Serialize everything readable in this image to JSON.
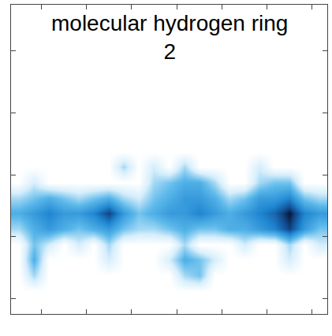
{
  "chart_data": {
    "type": "heatmap",
    "title": "molecular hydrogen ring 2",
    "x": [
      0.5,
      1.5,
      2.5,
      3.5,
      4.5,
      5.5,
      6.5,
      7.5,
      8.5,
      9.5,
      10.5,
      11.5,
      12.5,
      13.5,
      14.5,
      15.5,
      16.5,
      17.5,
      18.5,
      19.5,
      20.5
    ],
    "y": [
      0.5,
      1.5,
      2.5,
      3.5,
      4.5,
      5.5,
      6.5,
      7.5,
      8.5,
      9.5,
      10.5,
      11.5,
      12.5,
      13.5,
      14.5,
      15.5,
      16.5,
      17.5,
      18.5,
      19.5
    ],
    "cells": [
      [
        0,
        0,
        0,
        0,
        0,
        0,
        0,
        0,
        0,
        0,
        0,
        0,
        0,
        0,
        0,
        0,
        0,
        0,
        0,
        0,
        0
      ],
      [
        0,
        0,
        0,
        0,
        0,
        0,
        0,
        0,
        0,
        0,
        0,
        0,
        0,
        0,
        0,
        0,
        0,
        0,
        0,
        0,
        0
      ],
      [
        0,
        0.3,
        0,
        0,
        0,
        0,
        0,
        0,
        0,
        0,
        0,
        0.3,
        0.4,
        0,
        0,
        0,
        0,
        0,
        0,
        0,
        0
      ],
      [
        0,
        0.5,
        0,
        0,
        0,
        0,
        0.2,
        0,
        0,
        0,
        0.2,
        0.5,
        0.4,
        0.2,
        0,
        0,
        0,
        0,
        0.2,
        0,
        0
      ],
      [
        0,
        0.4,
        0.2,
        0,
        0.2,
        0,
        0.3,
        0,
        0,
        0,
        0,
        0.3,
        0,
        0,
        0,
        0.2,
        0,
        0,
        0.3,
        0,
        0.2
      ],
      [
        0.3,
        0.5,
        0.6,
        0.5,
        0.4,
        0.5,
        0.6,
        0.4,
        0.3,
        0.3,
        0.4,
        0.5,
        0.4,
        0.4,
        0.5,
        0.5,
        0.6,
        0.7,
        0.9,
        0.6,
        0.4
      ],
      [
        0.5,
        0.6,
        0.7,
        0.6,
        0.6,
        0.7,
        0.9,
        0.6,
        0.4,
        0.5,
        0.6,
        0.6,
        0.7,
        0.6,
        0.5,
        0.6,
        0.7,
        0.8,
        1.0,
        0.7,
        0.6
      ],
      [
        0.3,
        0.4,
        0.5,
        0.4,
        0.3,
        0.4,
        0.5,
        0.3,
        0.2,
        0.4,
        0.5,
        0.6,
        0.6,
        0.5,
        0.3,
        0.4,
        0.6,
        0.6,
        0.7,
        0.4,
        0.3
      ],
      [
        0,
        0.2,
        0,
        0,
        0,
        0,
        0,
        0,
        0,
        0.3,
        0.4,
        0.5,
        0.5,
        0.3,
        0,
        0,
        0.3,
        0.4,
        0.4,
        0,
        0
      ],
      [
        0,
        0,
        0,
        0,
        0,
        0,
        0,
        0.3,
        0,
        0.2,
        0,
        0.3,
        0,
        0,
        0,
        0,
        0.2,
        0,
        0,
        0,
        0
      ],
      [
        0,
        0,
        0,
        0,
        0,
        0,
        0,
        0,
        0,
        0,
        0,
        0,
        0,
        0,
        0,
        0,
        0,
        0,
        0,
        0,
        0
      ],
      [
        0,
        0,
        0,
        0,
        0,
        0,
        0,
        0,
        0,
        0,
        0,
        0,
        0,
        0,
        0,
        0,
        0,
        0,
        0,
        0,
        0
      ],
      [
        0,
        0,
        0,
        0,
        0,
        0,
        0,
        0,
        0,
        0,
        0,
        0,
        0,
        0,
        0,
        0,
        0,
        0,
        0,
        0,
        0
      ],
      [
        0,
        0,
        0,
        0,
        0,
        0,
        0,
        0,
        0,
        0,
        0,
        0,
        0,
        0,
        0,
        0,
        0,
        0,
        0,
        0,
        0
      ],
      [
        0,
        0,
        0,
        0,
        0,
        0,
        0,
        0,
        0,
        0,
        0,
        0,
        0,
        0,
        0,
        0,
        0,
        0,
        0,
        0,
        0
      ],
      [
        0,
        0,
        0,
        0,
        0,
        0,
        0,
        0,
        0,
        0,
        0,
        0,
        0,
        0,
        0,
        0,
        0,
        0,
        0,
        0,
        0
      ],
      [
        0,
        0,
        0,
        0,
        0,
        0,
        0,
        0,
        0,
        0,
        0,
        0,
        0,
        0,
        0,
        0,
        0,
        0,
        0,
        0,
        0
      ],
      [
        0,
        0,
        0,
        0,
        0,
        0,
        0,
        0,
        0,
        0,
        0,
        0,
        0,
        0,
        0,
        0,
        0,
        0,
        0,
        0,
        0
      ],
      [
        0,
        0,
        0,
        0,
        0,
        0,
        0,
        0,
        0,
        0,
        0,
        0,
        0,
        0,
        0,
        0,
        0,
        0,
        0,
        0,
        0
      ],
      [
        0,
        0,
        0,
        0,
        0,
        0,
        0,
        0,
        0,
        0,
        0,
        0,
        0,
        0,
        0,
        0,
        0,
        0,
        0,
        0,
        0
      ]
    ],
    "color_range": [
      0,
      1
    ],
    "xlim": [
      0,
      21
    ],
    "ylim": [
      0,
      20
    ],
    "xticks": [
      2,
      5,
      8,
      11,
      14,
      17,
      20
    ],
    "yticks": [
      1,
      5,
      9,
      13,
      17
    ],
    "tick_labels": false,
    "grid": false
  }
}
